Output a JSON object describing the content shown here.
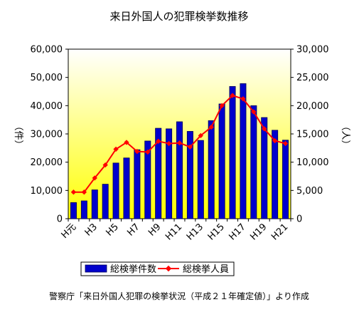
{
  "chart_data": {
    "type": "bar",
    "title": "来日外国人の犯罪検挙数推移",
    "left_axis_label": "（件）",
    "right_axis_label": "（人）",
    "left_ylim": [
      0,
      60000
    ],
    "right_ylim": [
      0,
      30000
    ],
    "left_ticks": [
      "0",
      "10,000",
      "20,000",
      "30,000",
      "40,000",
      "50,000",
      "60,000"
    ],
    "right_ticks": [
      "0",
      "5,000",
      "10,000",
      "15,000",
      "20,000",
      "25,000",
      "30,000"
    ],
    "left_tick_values": [
      0,
      10000,
      20000,
      30000,
      40000,
      50000,
      60000
    ],
    "right_tick_values": [
      0,
      5000,
      10000,
      15000,
      20000,
      25000,
      30000
    ],
    "categories": [
      "H元",
      "H2",
      "H3",
      "H4",
      "H5",
      "H6",
      "H7",
      "H8",
      "H9",
      "H10",
      "H11",
      "H12",
      "H13",
      "H14",
      "H15",
      "H16",
      "H17",
      "H18",
      "H19",
      "H20",
      "H21"
    ],
    "x_tick_labels": [
      "H元",
      "",
      "H3",
      "",
      "H5",
      "",
      "H7",
      "",
      "H9",
      "",
      "H11",
      "",
      "H13",
      "",
      "H15",
      "",
      "H17",
      "",
      "H19",
      "",
      "H21"
    ],
    "grid": false,
    "legend_position": "bottom",
    "colors": {
      "bar_fill": "#0000cc",
      "bar_edge": "#00005a",
      "line": "#ff0000",
      "marker": "#ff0000",
      "plot_bg_top": "#ffffff",
      "plot_bg_bottom": "#ffff00"
    },
    "series": [
      {
        "name": "総検挙件数",
        "type": "bar",
        "axis": "left",
        "values": [
          5700,
          6300,
          10200,
          12200,
          19700,
          21500,
          24400,
          27500,
          32000,
          31800,
          34300,
          30900,
          27700,
          34700,
          40600,
          46800,
          47800,
          40000,
          35800,
          31300,
          27800
        ]
      },
      {
        "name": "総検挙人員",
        "type": "line",
        "axis": "right",
        "values": [
          4700,
          4700,
          7200,
          9500,
          12300,
          13500,
          11900,
          11800,
          13700,
          13300,
          13400,
          12700,
          14700,
          16200,
          20000,
          21800,
          21200,
          18900,
          15900,
          13800,
          13300
        ]
      }
    ]
  },
  "source_note": "警察庁「来日外国人犯罪の検挙状況（平成２１年確定値）」より作成"
}
